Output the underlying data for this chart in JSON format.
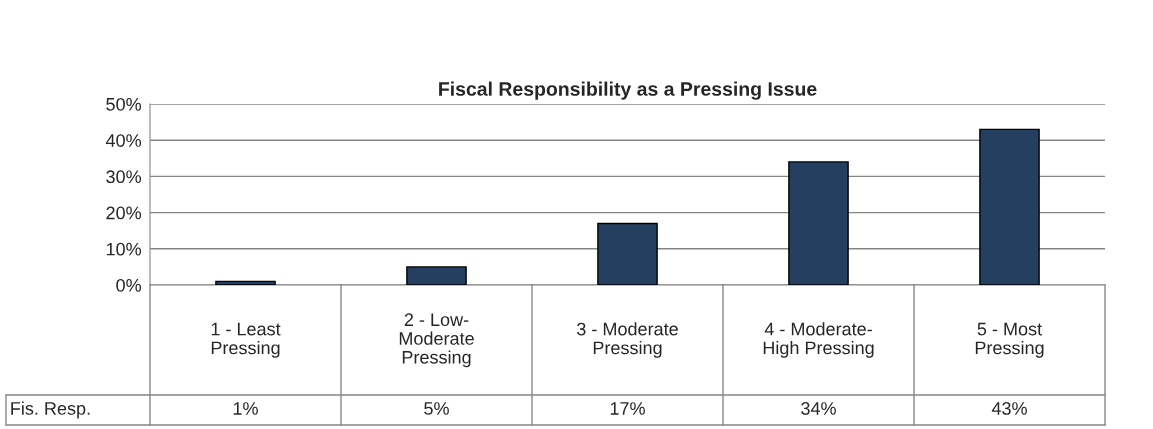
{
  "chart_data": {
    "type": "bar",
    "title": "Fiscal Responsibility as a Pressing Issue",
    "categories": [
      "1 - Least\nPressing",
      "2 - Low-\nModerate\nPressing",
      "3 - Moderate\nPressing",
      "4 - Moderate-\nHigh Pressing",
      "5 - Most\nPressing"
    ],
    "series": [
      {
        "name": "Fis. Resp.",
        "color": "#243f60",
        "values": [
          1,
          5,
          17,
          34,
          43
        ],
        "value_labels": [
          "1%",
          "5%",
          "17%",
          "34%",
          "43%"
        ]
      }
    ],
    "ylim": [
      0,
      50
    ],
    "yticks": [
      {
        "value": 0,
        "label": "0%"
      },
      {
        "value": 10,
        "label": "10%"
      },
      {
        "value": 20,
        "label": "20%"
      },
      {
        "value": 30,
        "label": "30%"
      },
      {
        "value": 40,
        "label": "40%"
      },
      {
        "value": 50,
        "label": "50%"
      }
    ],
    "grid": "y"
  }
}
